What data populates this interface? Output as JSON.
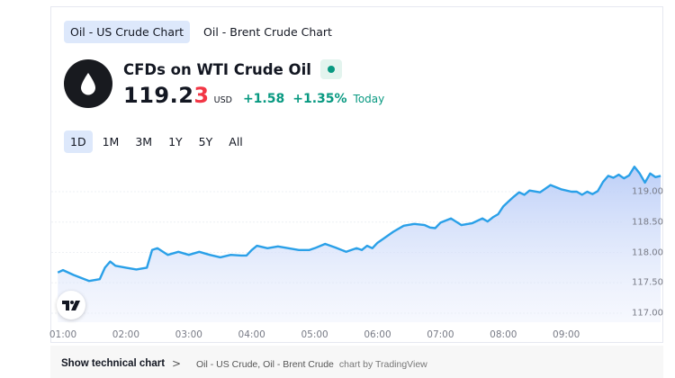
{
  "tabs": [
    {
      "label": "Oil - US Crude Chart",
      "active": true
    },
    {
      "label": "Oil - Brent Crude Chart",
      "active": false
    }
  ],
  "symbol": {
    "icon": "oil-drop-icon",
    "name": "CFDs on WTI Crude Oil",
    "market_status": "open",
    "price_main": "119.2",
    "price_last_digit": "3",
    "currency": "USD",
    "change": "+1.58",
    "change_percent": "+1.35%",
    "period_label": "Today"
  },
  "ranges": [
    {
      "label": "1D",
      "active": true
    },
    {
      "label": "1M",
      "active": false
    },
    {
      "label": "3M",
      "active": false
    },
    {
      "label": "1Y",
      "active": false
    },
    {
      "label": "5Y",
      "active": false
    },
    {
      "label": "All",
      "active": false
    }
  ],
  "colors": {
    "line": "#2aa0e8",
    "area_top": "#b9ccf7",
    "positive": "#089981",
    "negative_digit": "#f23645",
    "active_tab_bg": "#dde8fb"
  },
  "chart_data": {
    "type": "area",
    "title": "CFDs on WTI Crude Oil",
    "xlabel": "",
    "ylabel": "USD",
    "x_ticks": [
      "01:00",
      "02:00",
      "03:00",
      "04:00",
      "05:00",
      "06:00",
      "07:00",
      "08:00",
      "09:00"
    ],
    "y_ticks": [
      "117.00",
      "117.50",
      "118.00",
      "118.50",
      "119.00"
    ],
    "ylim": [
      116.85,
      119.35
    ],
    "grid": true,
    "x": [
      "00:55",
      "01:00",
      "01:10",
      "01:25",
      "01:35",
      "01:40",
      "01:45",
      "01:50",
      "02:00",
      "02:10",
      "02:20",
      "02:25",
      "02:30",
      "02:40",
      "02:50",
      "03:00",
      "03:10",
      "03:20",
      "03:30",
      "03:40",
      "03:50",
      "03:55",
      "04:00",
      "04:05",
      "04:15",
      "04:25",
      "04:35",
      "04:45",
      "04:55",
      "05:00",
      "05:10",
      "05:20",
      "05:30",
      "05:40",
      "05:45",
      "05:50",
      "05:55",
      "06:00",
      "06:05",
      "06:15",
      "06:25",
      "06:35",
      "06:45",
      "06:50",
      "06:55",
      "07:00",
      "07:10",
      "07:20",
      "07:30",
      "07:40",
      "07:45",
      "07:50",
      "07:55",
      "08:00",
      "08:05",
      "08:10",
      "08:15",
      "08:20",
      "08:25",
      "08:35",
      "08:45",
      "08:55",
      "09:05",
      "09:10",
      "09:15",
      "09:20",
      "09:25",
      "09:30",
      "09:35",
      "09:40",
      "09:45",
      "09:50",
      "09:55",
      "10:00",
      "10:05",
      "10:10",
      "10:15",
      "10:20",
      "10:25",
      "10:30"
    ],
    "values": [
      117.67,
      117.71,
      117.63,
      117.53,
      117.56,
      117.75,
      117.85,
      117.78,
      117.75,
      117.72,
      117.75,
      118.04,
      118.07,
      117.96,
      118.01,
      117.96,
      118.01,
      117.96,
      117.92,
      117.96,
      117.95,
      117.95,
      118.04,
      118.11,
      118.07,
      118.1,
      118.07,
      118.04,
      118.04,
      118.07,
      118.14,
      118.08,
      118.01,
      118.07,
      118.04,
      118.11,
      118.07,
      118.16,
      118.22,
      118.34,
      118.44,
      118.47,
      118.45,
      118.41,
      118.4,
      118.49,
      118.56,
      118.45,
      118.48,
      118.56,
      118.51,
      118.58,
      118.63,
      118.76,
      118.84,
      118.92,
      118.99,
      118.95,
      119.02,
      118.99,
      119.11,
      119.04,
      119.0,
      119.0,
      118.95,
      119.0,
      118.96,
      119.01,
      119.16,
      119.26,
      119.23,
      119.28,
      119.22,
      119.27,
      119.41,
      119.3,
      119.15,
      119.3,
      119.24,
      119.26
    ]
  },
  "footer": {
    "show_chart_label": "Show technical chart",
    "chevron": ">",
    "symbols_link": "Oil - US Crude, Oil - Brent Crude",
    "credit": "chart by TradingView"
  }
}
